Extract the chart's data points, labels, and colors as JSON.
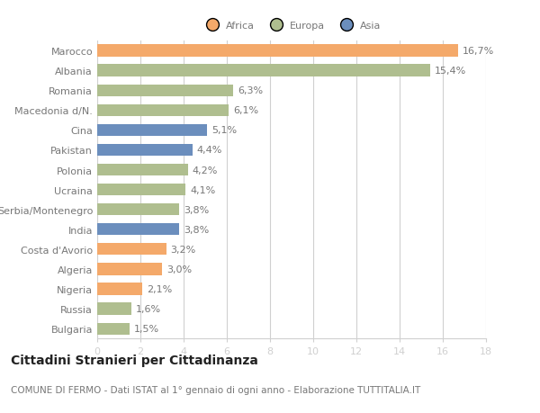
{
  "categories": [
    "Marocco",
    "Albania",
    "Romania",
    "Macedonia d/N.",
    "Cina",
    "Pakistan",
    "Polonia",
    "Ucraina",
    "Serbia/Montenegro",
    "India",
    "Costa d'Avorio",
    "Algeria",
    "Nigeria",
    "Russia",
    "Bulgaria"
  ],
  "values": [
    16.7,
    15.4,
    6.3,
    6.1,
    5.1,
    4.4,
    4.2,
    4.1,
    3.8,
    3.8,
    3.2,
    3.0,
    2.1,
    1.6,
    1.5
  ],
  "labels": [
    "16,7%",
    "15,4%",
    "6,3%",
    "6,1%",
    "5,1%",
    "4,4%",
    "4,2%",
    "4,1%",
    "3,8%",
    "3,8%",
    "3,2%",
    "3,0%",
    "2,1%",
    "1,6%",
    "1,5%"
  ],
  "continents": [
    "Africa",
    "Europa",
    "Europa",
    "Europa",
    "Asia",
    "Asia",
    "Europa",
    "Europa",
    "Europa",
    "Asia",
    "Africa",
    "Africa",
    "Africa",
    "Europa",
    "Europa"
  ],
  "colors": {
    "Africa": "#F4A96A",
    "Europa": "#AFBE8F",
    "Asia": "#6B8EBD"
  },
  "legend_labels": [
    "Africa",
    "Europa",
    "Asia"
  ],
  "legend_colors": [
    "#F4A96A",
    "#AFBE8F",
    "#6B8EBD"
  ],
  "xlim": [
    0,
    18
  ],
  "xticks": [
    0,
    2,
    4,
    6,
    8,
    10,
    12,
    14,
    16,
    18
  ],
  "title": "Cittadini Stranieri per Cittadinanza",
  "subtitle": "COMUNE DI FERMO - Dati ISTAT al 1° gennaio di ogni anno - Elaborazione TUTTITALIA.IT",
  "bg_color": "#ffffff",
  "grid_color": "#d0d0d0",
  "bar_height": 0.6,
  "label_fontsize": 8,
  "tick_fontsize": 8,
  "title_fontsize": 10,
  "subtitle_fontsize": 7.5,
  "text_color": "#777777",
  "title_color": "#222222"
}
